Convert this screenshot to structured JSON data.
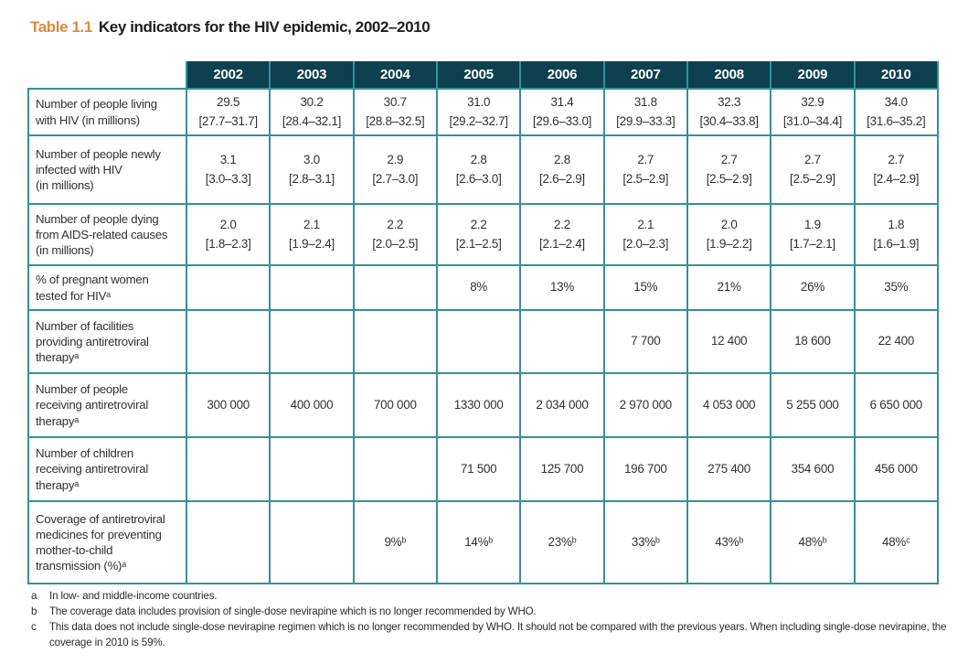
{
  "title": {
    "prefix": "Table 1.1",
    "text": "Key indicators for the HIV epidemic, 2002–2010"
  },
  "colors": {
    "header_bg": "#0d4150",
    "table_border": "#35909a",
    "title_accent": "#dc8a3c",
    "body_text": "#333130"
  },
  "table": {
    "years": [
      "2002",
      "2003",
      "2004",
      "2005",
      "2006",
      "2007",
      "2008",
      "2009",
      "2010"
    ],
    "rows": [
      {
        "label": "Number of people living\nwith HIV (in millions)",
        "values": [
          "29.5\n[27.7–31.7]",
          "30.2\n[28.4–32.1]",
          "30.7\n[28.8–32.5]",
          "31.0\n[29.2–32.7]",
          "31.4\n[29.6–33.0]",
          "31.8\n[29.9–33.3]",
          "32.3\n[30.4–33.8]",
          "32.9\n[31.0–34.4]",
          "34.0\n[31.6–35.2]"
        ]
      },
      {
        "label": "Number of people newly\ninfected with HIV\n(in millions)",
        "values": [
          "3.1\n[3.0–3.3]",
          "3.0\n[2.8–3.1]",
          "2.9\n[2.7–3.0]",
          "2.8\n[2.6–3.0]",
          "2.8\n[2.6–2.9]",
          "2.7\n[2.5–2.9]",
          "2.7\n[2.5–2.9]",
          "2.7\n[2.5–2.9]",
          "2.7\n[2.4–2.9]"
        ]
      },
      {
        "label": "Number of people dying\nfrom AIDS-related causes\n(in millions)",
        "values": [
          "2.0\n[1.8–2.3]",
          "2.1\n[1.9–2.4]",
          "2.2\n[2.0–2.5]",
          "2.2\n[2.1–2.5]",
          "2.2\n[2.1–2.4]",
          "2.1\n[2.0–2.3]",
          "2.0\n[1.9–2.2]",
          "1.9\n[1.7–2.1]",
          "1.8\n[1.6–1.9]"
        ]
      },
      {
        "label": "% of pregnant women\ntested for HIVᵃ",
        "values": [
          "",
          "",
          "",
          "8%",
          "13%",
          "15%",
          "21%",
          "26%",
          "35%"
        ]
      },
      {
        "label": "Number of facilities\nproviding antiretroviral\ntherapyᵃ",
        "values": [
          "",
          "",
          "",
          "",
          "",
          "7 700",
          "12 400",
          "18 600",
          "22 400"
        ]
      },
      {
        "label": "Number of people\nreceiving antiretroviral\ntherapyᵃ",
        "values": [
          "300 000",
          "400 000",
          "700 000",
          "1330 000",
          "2 034 000",
          "2 970 000",
          "4 053 000",
          "5 255 000",
          "6 650 000"
        ]
      },
      {
        "label": "Number of children\nreceiving antiretroviral\ntherapyᵃ",
        "values": [
          "",
          "",
          "",
          "71 500",
          "125 700",
          "196 700",
          "275 400",
          "354 600",
          "456 000"
        ]
      },
      {
        "label": "Coverage of antiretroviral\nmedicines for preventing\nmother-to-child\ntransmission (%)ᵃ",
        "values": [
          "",
          "",
          "9%ᵇ",
          "14%ᵇ",
          "23%ᵇ",
          "33%ᵇ",
          "43%ᵇ",
          "48%ᵇ",
          "48%ᶜ"
        ]
      }
    ]
  },
  "footnotes": [
    {
      "marker": "a",
      "text": "In low- and middle-income countries."
    },
    {
      "marker": "b",
      "text": "The coverage data includes provision of single-dose nevirapine which is no longer recommended by WHO."
    },
    {
      "marker": "c",
      "text": "This data does not include single-dose nevirapine regimen which is no longer recommended by WHO. It should not be compared with the previous years. When including single-dose nevirapine, the coverage in 2010 is 59%."
    }
  ]
}
